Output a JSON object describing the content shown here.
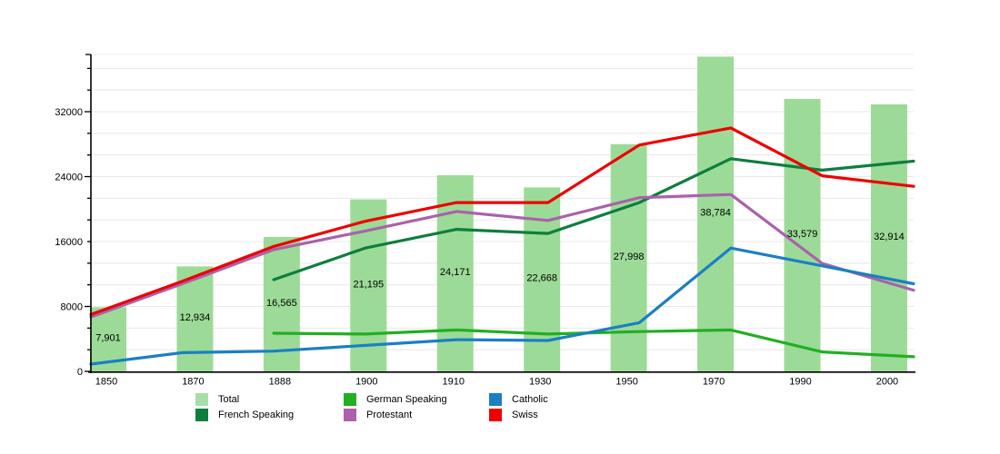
{
  "chart_data": {
    "type": "bar+line",
    "title": "",
    "xlabel": "",
    "ylabel": "",
    "categories": [
      "1850",
      "1870",
      "1888",
      "1900",
      "1910",
      "1930",
      "1950",
      "1970",
      "1990",
      "2000"
    ],
    "y_axis": {
      "tick_labels": [
        "0",
        "8000",
        "16000",
        "24000",
        "32000"
      ],
      "tick_values": [
        0,
        8000,
        16000,
        24000,
        32000
      ],
      "major_step": 8000,
      "minor_divisions_per_major": 3,
      "max": 39050
    },
    "grid": true,
    "bars": {
      "name": "Total",
      "color": "#9CDB97",
      "values": [
        7901,
        12934,
        16565,
        21195,
        24171,
        22668,
        27998,
        38784,
        33579,
        32914
      ],
      "labels": [
        "7,901",
        "12,934",
        "16,565",
        "21,195",
        "24,171",
        "22,668",
        "27,998",
        "38,784",
        "33,579",
        "32,914"
      ]
    },
    "series": [
      {
        "name": "French Speaking",
        "color": "#0E7E3E",
        "values": [
          null,
          null,
          11300,
          15200,
          17500,
          17000,
          20800,
          26200,
          24800,
          25900
        ]
      },
      {
        "name": "German Speaking",
        "color": "#22AF22",
        "values": [
          null,
          null,
          4700,
          4600,
          5100,
          4600,
          4900,
          5100,
          2400,
          1800
        ]
      },
      {
        "name": "Protestant",
        "color": "#AB61AB",
        "values": [
          6700,
          10800,
          15000,
          17300,
          19700,
          18600,
          21400,
          21800,
          13300,
          10000
        ]
      },
      {
        "name": "Catholic",
        "color": "#1B7FC4",
        "values": [
          900,
          2300,
          2500,
          3200,
          3900,
          3800,
          6000,
          15200,
          13000,
          10800
        ]
      },
      {
        "name": "Swiss",
        "color": "#EE0000",
        "values": [
          7000,
          11100,
          15400,
          18500,
          20800,
          20800,
          27900,
          30000,
          24100,
          22800
        ]
      }
    ],
    "legend": {
      "position": "bottom",
      "items": [
        {
          "label": "Total",
          "color": "#A6DFA6"
        },
        {
          "label": "French Speaking",
          "color": "#0E7E3E"
        },
        {
          "label": "German Speaking",
          "color": "#22AF22"
        },
        {
          "label": "Protestant",
          "color": "#AB61AB"
        },
        {
          "label": "Catholic",
          "color": "#1B7FC4"
        },
        {
          "label": "Swiss",
          "color": "#EE0000"
        }
      ]
    }
  }
}
